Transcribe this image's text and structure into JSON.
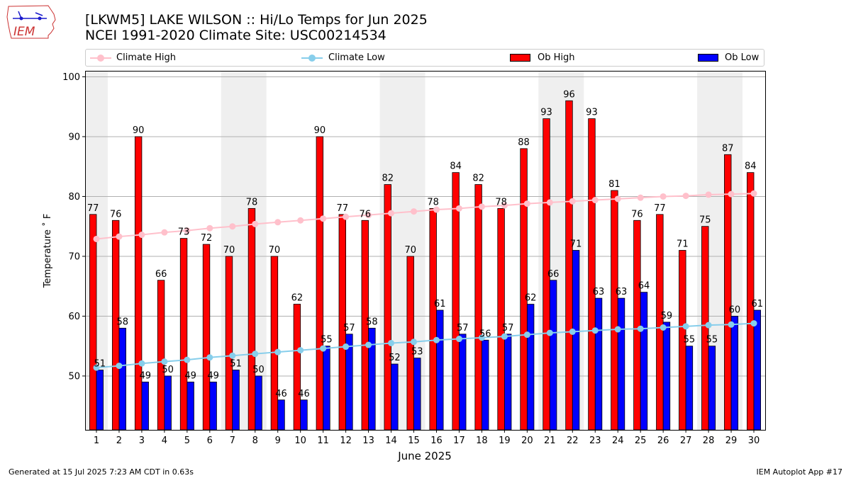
{
  "header": {
    "title_line1": "[LKWM5] LAKE WILSON :: Hi/Lo Temps for Jun 2025",
    "title_line2": "NCEI 1991-2020 Climate Site: USC00214534",
    "logo_text": "IEM"
  },
  "footer": {
    "left": "Generated at 15 Jul 2025 7:23 AM CDT in 0.63s",
    "right": "IEM Autoplot App #17"
  },
  "chart_data": {
    "type": "bar",
    "xlabel": "June 2025",
    "ylabel": "Temperature ˚ F",
    "ylim": [
      41,
      101
    ],
    "yticks": [
      50,
      60,
      70,
      80,
      90,
      100
    ],
    "grid": "horizontal",
    "legend_placement": "top",
    "categories": [
      "1",
      "2",
      "3",
      "4",
      "5",
      "6",
      "7",
      "8",
      "9",
      "10",
      "11",
      "12",
      "13",
      "14",
      "15",
      "16",
      "17",
      "18",
      "19",
      "20",
      "21",
      "22",
      "23",
      "24",
      "25",
      "26",
      "27",
      "28",
      "29",
      "30"
    ],
    "weekend_shading_days": [
      [
        1,
        1
      ],
      [
        7,
        8
      ],
      [
        14,
        15
      ],
      [
        21,
        22
      ],
      [
        28,
        29
      ]
    ],
    "series": [
      {
        "name": "Ob High",
        "kind": "bar",
        "color": "#ff0000",
        "values": [
          77,
          76,
          90,
          66,
          73,
          72,
          70,
          78,
          70,
          62,
          90,
          77,
          76,
          82,
          70,
          78,
          84,
          82,
          78,
          88,
          93,
          96,
          93,
          81,
          76,
          77,
          71,
          75,
          87,
          84
        ]
      },
      {
        "name": "Ob Low",
        "kind": "bar",
        "color": "#0000ff",
        "values": [
          51,
          58,
          49,
          50,
          49,
          49,
          51,
          50,
          46,
          46,
          55,
          57,
          58,
          52,
          53,
          61,
          57,
          56,
          57,
          62,
          66,
          71,
          63,
          63,
          64,
          59,
          55,
          55,
          60,
          61
        ]
      },
      {
        "name": "Climate High",
        "kind": "line",
        "color": "#ffc0cb",
        "values": [
          72.9,
          73.3,
          73.6,
          74.0,
          74.3,
          74.7,
          75.0,
          75.4,
          75.7,
          76.0,
          76.3,
          76.6,
          76.9,
          77.2,
          77.5,
          77.8,
          78.0,
          78.3,
          78.5,
          78.8,
          79.0,
          79.2,
          79.4,
          79.6,
          79.8,
          80.0,
          80.1,
          80.3,
          80.4,
          80.5
        ]
      },
      {
        "name": "Climate Low",
        "kind": "line",
        "color": "#87ceeb",
        "values": [
          51.4,
          51.7,
          52.1,
          52.4,
          52.7,
          53.1,
          53.4,
          53.7,
          54.0,
          54.3,
          54.6,
          54.9,
          55.2,
          55.5,
          55.7,
          56.0,
          56.2,
          56.4,
          56.6,
          56.9,
          57.2,
          57.4,
          57.6,
          57.8,
          57.9,
          58.1,
          58.3,
          58.5,
          58.6,
          58.8
        ]
      }
    ]
  }
}
